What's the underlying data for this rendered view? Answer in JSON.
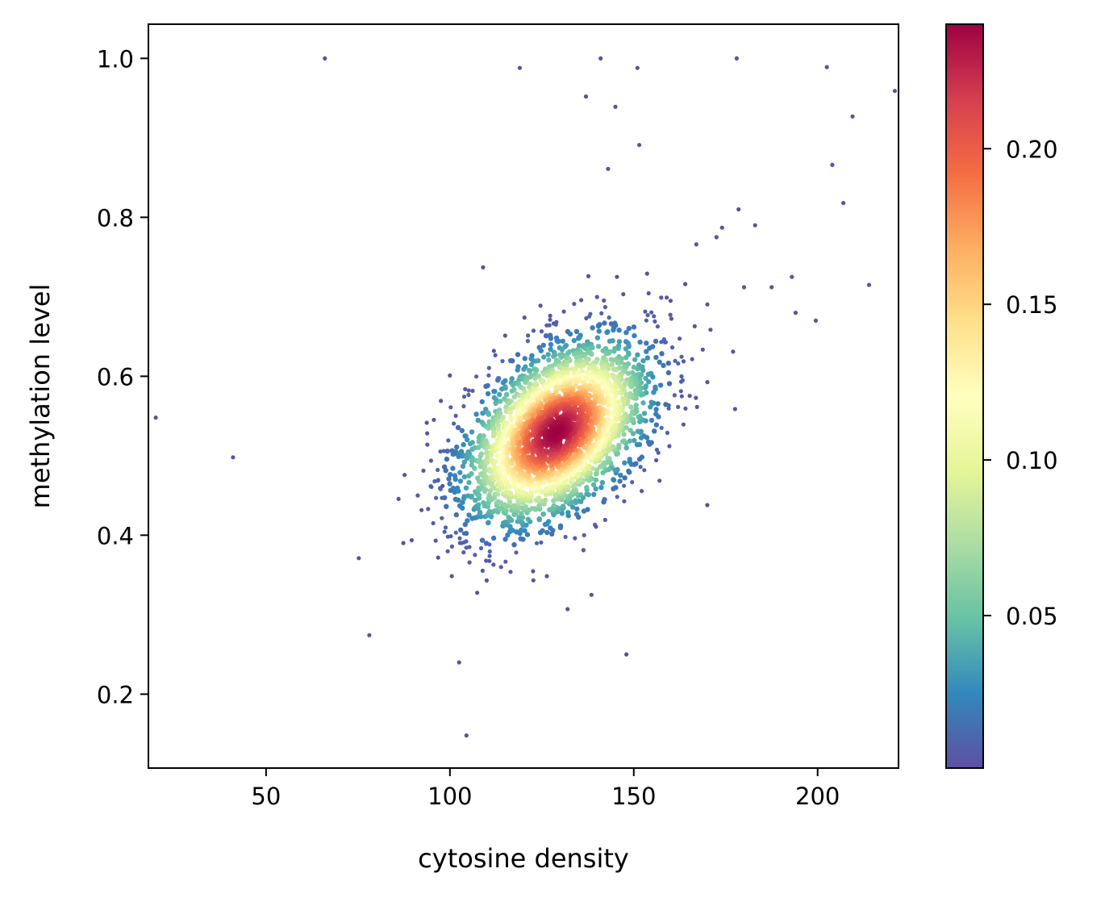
{
  "chart_data": {
    "type": "scatter",
    "title": "",
    "xlabel": "cytosine density",
    "ylabel": "methylation level",
    "xlim": [
      18,
      222
    ],
    "ylim": [
      0.107,
      1.043
    ],
    "xticks": [
      50,
      100,
      150,
      200
    ],
    "yticks": [
      0.2,
      0.4,
      0.6,
      0.8,
      1.0
    ],
    "colormap": "Spectral_r",
    "colormap_stops": [
      "#5e4fa2",
      "#3288bd",
      "#66c2a5",
      "#abdda4",
      "#e6f598",
      "#ffffbf",
      "#fee08b",
      "#fdae61",
      "#f46d43",
      "#d53e4f",
      "#9e0142"
    ],
    "colorbar": {
      "min": 0.001,
      "max": 0.24,
      "ticks": [
        0.05,
        0.1,
        0.15,
        0.2
      ]
    },
    "grid": false,
    "density_cluster": {
      "center_x": 129,
      "center_y": 0.53,
      "std_x": 13,
      "std_y": 0.06,
      "correlation": 0.45,
      "approx_points": 3000
    },
    "outliers": [
      [
        20,
        0.548
      ],
      [
        41,
        0.498
      ],
      [
        66,
        1.0
      ],
      [
        102.5,
        0.24
      ],
      [
        104.5,
        0.148
      ],
      [
        119,
        0.988
      ],
      [
        132,
        0.307
      ],
      [
        137,
        0.952
      ],
      [
        138.5,
        0.325
      ],
      [
        141,
        1.0
      ],
      [
        143,
        0.861
      ],
      [
        145,
        0.939
      ],
      [
        148,
        0.25
      ],
      [
        151,
        0.988
      ],
      [
        151.5,
        0.891
      ],
      [
        178,
        1.0
      ],
      [
        178.5,
        0.81
      ],
      [
        183,
        0.79
      ],
      [
        193,
        0.725
      ],
      [
        194,
        0.68
      ],
      [
        199.5,
        0.67
      ],
      [
        202.5,
        0.989
      ],
      [
        204,
        0.866
      ],
      [
        207,
        0.818
      ],
      [
        209.5,
        0.927
      ],
      [
        214,
        0.715
      ],
      [
        221,
        0.959
      ],
      [
        170,
        0.438
      ],
      [
        167,
        0.766
      ],
      [
        174,
        0.787
      ],
      [
        172.5,
        0.775
      ],
      [
        109,
        0.737
      ],
      [
        100,
        0.601
      ],
      [
        110,
        0.343
      ],
      [
        98,
        0.462
      ],
      [
        180,
        0.712
      ],
      [
        187.5,
        0.712
      ],
      [
        164,
        0.716
      ],
      [
        160,
        0.695
      ],
      [
        177,
        0.631
      ]
    ]
  }
}
